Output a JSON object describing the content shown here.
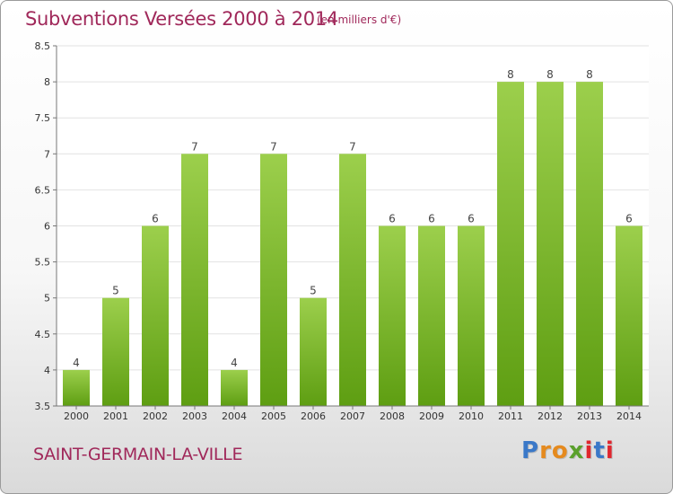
{
  "header": {
    "title": "Subventions Versées 2000 à 2014",
    "unit": "(en milliers d'€)"
  },
  "footer": {
    "city": "SAINT-GERMAIN-LA-VILLE",
    "logo": [
      "P",
      "r",
      "o",
      "x",
      "i",
      "t",
      "i"
    ],
    "logo_colors": [
      "#3a78c8",
      "#e58a1e",
      "#e58a1e",
      "#5aa02c",
      "#e0262e",
      "#3a78c8",
      "#e0262e"
    ]
  },
  "colors": {
    "bar_top": "#9ccf4c",
    "bar_bottom": "#5e9e12",
    "grid": "#e2e2e2",
    "axis": "#777777",
    "accent": "#a0285a"
  },
  "chart_data": {
    "type": "bar",
    "title": "Subventions Versées 2000 à 2014",
    "categories": [
      "2000",
      "2001",
      "2002",
      "2003",
      "2004",
      "2005",
      "2006",
      "2007",
      "2008",
      "2009",
      "2010",
      "2011",
      "2012",
      "2013",
      "2014"
    ],
    "values": [
      4,
      5,
      6,
      7,
      4,
      7,
      5,
      7,
      6,
      6,
      6,
      8,
      8,
      8,
      6
    ],
    "ylim": [
      3.5,
      8.5
    ],
    "yticks": [
      "3.5",
      "4",
      "4.5",
      "5",
      "5.5",
      "6",
      "6.5",
      "7",
      "7.5",
      "8",
      "8.5"
    ],
    "grid": true,
    "legend": "none"
  }
}
